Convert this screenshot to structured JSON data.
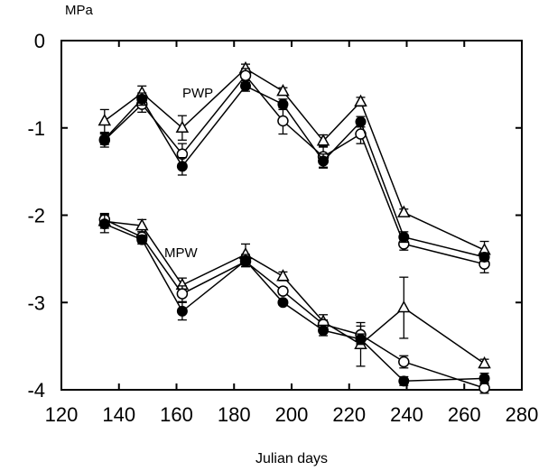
{
  "chart_data": {
    "type": "line",
    "title": "",
    "unit_label": "MPa",
    "xlabel": "Julian days",
    "ylabel": "",
    "xlim": [
      120,
      280
    ],
    "ylim": [
      -4,
      0
    ],
    "xticks": [
      120,
      140,
      160,
      180,
      200,
      220,
      240,
      260,
      280
    ],
    "yticks": [
      0,
      -1,
      -2,
      -3,
      -4
    ],
    "grid": false,
    "groups": [
      {
        "label": "PWP",
        "series": [
          {
            "marker": "triangle-open",
            "x": [
              135,
              148,
              162,
              184,
              197,
              211,
              224,
              239,
              267
            ],
            "y": [
              -0.92,
              -0.6,
              -1.0,
              -0.32,
              -0.58,
              -1.15,
              -0.7,
              -1.97,
              -2.4
            ],
            "err": [
              0.13,
              0.08,
              0.14,
              0.05,
              0.04,
              0.07,
              0.05,
              0.04,
              0.1
            ]
          },
          {
            "marker": "circle-open",
            "x": [
              135,
              148,
              162,
              184,
              197,
              211,
              224,
              239,
              267
            ],
            "y": [
              -1.14,
              -0.73,
              -1.3,
              -0.4,
              -0.92,
              -1.33,
              -1.07,
              -2.33,
              -2.56
            ],
            "err": [
              0.08,
              0.09,
              0.12,
              0.08,
              0.15,
              0.12,
              0.11,
              0.07,
              0.1
            ]
          },
          {
            "marker": "circle-filled",
            "x": [
              135,
              148,
              162,
              184,
              197,
              211,
              224,
              239,
              267
            ],
            "y": [
              -1.13,
              -0.67,
              -1.44,
              -0.52,
              -0.73,
              -1.38,
              -0.93,
              -2.25,
              -2.48
            ],
            "err": [
              0.06,
              0.07,
              0.1,
              0.06,
              0.06,
              0.08,
              0.06,
              0.06,
              0.05
            ]
          }
        ]
      },
      {
        "label": "MPW",
        "series": [
          {
            "marker": "triangle-open",
            "x": [
              135,
              148,
              162,
              184,
              197,
              211,
              224,
              239,
              267
            ],
            "y": [
              -2.07,
              -2.12,
              -2.8,
              -2.45,
              -2.7,
              -3.22,
              -3.48,
              -3.06,
              -3.7
            ],
            "err": [
              0.08,
              0.07,
              0.08,
              0.12,
              0.05,
              0.08,
              0.25,
              0.35,
              0.05
            ]
          },
          {
            "marker": "circle-open",
            "x": [
              135,
              148,
              162,
              184,
              197,
              211,
              224,
              239,
              267
            ],
            "y": [
              -2.05,
              -2.25,
              -2.9,
              -2.53,
              -2.87,
              -3.25,
              -3.37,
              -3.68,
              -3.98
            ],
            "err": [
              0.07,
              0.06,
              0.09,
              0.06,
              0.04,
              0.05,
              0.1,
              0.07,
              0.06
            ]
          },
          {
            "marker": "circle-filled",
            "x": [
              135,
              148,
              162,
              184,
              197,
              211,
              224,
              239,
              267
            ],
            "y": [
              -2.1,
              -2.28,
              -3.1,
              -2.52,
              -3.0,
              -3.32,
              -3.42,
              -3.9,
              -3.87
            ],
            "err": [
              0.1,
              0.05,
              0.1,
              0.07,
              0.03,
              0.06,
              0.06,
              0.05,
              0.06
            ]
          }
        ]
      }
    ]
  }
}
